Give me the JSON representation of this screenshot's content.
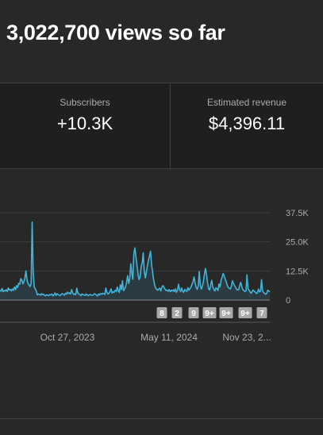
{
  "headline": "3,022,700 views so far",
  "metrics": [
    {
      "label": "Subscribers",
      "value": "+10.3K"
    },
    {
      "label": "Estimated revenue",
      "value": "$4,396.11"
    }
  ],
  "chart_data": {
    "type": "area",
    "series": [
      {
        "color": "#41b4d9",
        "values": [
          4200,
          3800,
          5000,
          3600,
          4100,
          3900,
          4400,
          3700,
          5200,
          4300,
          4600,
          3900,
          4800,
          4200,
          5600,
          4500,
          6200,
          5400,
          7200,
          6800,
          9200,
          8600,
          7000,
          7800,
          9500,
          12500,
          8900,
          7100,
          6500,
          5800,
          7300,
          33500,
          12000,
          5600,
          4800,
          3900,
          2200,
          2600,
          2400,
          2100,
          2800,
          2300,
          2500,
          2000,
          1800,
          2300,
          2100,
          1900,
          2400,
          2200,
          2600,
          1800,
          2200,
          3100,
          2000,
          2700,
          2400,
          2100,
          1900,
          2500,
          2800,
          2400,
          2100,
          2900,
          2500,
          3400,
          2800,
          3100,
          2600,
          4500,
          3100,
          2400,
          2700,
          2300,
          5100,
          3000,
          2600,
          2300,
          1900,
          2600,
          2400,
          2200,
          2000,
          2600,
          2200,
          1900,
          2200,
          2400,
          2100,
          2000,
          2300,
          2700,
          2500,
          2100,
          1800,
          2600,
          2200,
          2800,
          2500,
          2900,
          2700,
          2400,
          5200,
          3300,
          2600,
          2900,
          3700,
          4800,
          3000,
          3600,
          3300,
          4200,
          3800,
          5600,
          3800,
          3300,
          6600,
          4500,
          8300,
          4000,
          4800,
          5700,
          7700,
          10500,
          7100,
          9000,
          15600,
          11800,
          8900,
          20100,
          22400,
          18500,
          14800,
          11200,
          8800,
          9900,
          14400,
          16000,
          20300,
          12800,
          9500,
          11700,
          14600,
          17000,
          18900,
          21000,
          15700,
          12100,
          8800,
          6500,
          5200,
          4600,
          4200,
          4800,
          5100,
          3900,
          5600,
          6200,
          5400,
          4700,
          4100,
          4300,
          3800,
          4500,
          3600,
          4200,
          3900,
          4400,
          3700,
          4800,
          3300,
          4200,
          6800,
          4500,
          3600,
          5200,
          3800,
          3300,
          4600,
          4000,
          3700,
          5300,
          4200,
          4900,
          5600,
          6700,
          7900,
          9900,
          7400,
          5400,
          4600,
          6000,
          12300,
          6500,
          4700,
          5800,
          8000,
          11200,
          13600,
          10900,
          7400,
          4800,
          4300,
          6400,
          8500,
          5700,
          4600,
          3900,
          5300,
          4800,
          4100,
          6900,
          5600,
          8400,
          9800,
          11400,
          10400,
          9000,
          7900,
          6300,
          5400,
          5100,
          4700,
          6000,
          8300,
          7100,
          6200,
          5400,
          4600,
          4300,
          4500,
          6400,
          7600,
          5700,
          4500,
          4100,
          3700,
          3900,
          10800,
          4800,
          4200,
          3500,
          2900,
          3700,
          4300,
          3800,
          3400,
          2800,
          3100,
          4700,
          3500,
          3800,
          8700,
          3900,
          3300,
          2800,
          2500,
          2900,
          4200,
          3900,
          3500
        ]
      }
    ],
    "x_tick_labels": [
      "Oct 27, 2023",
      "May 11, 2024",
      "Nov 23, 2..."
    ],
    "y_tick_labels": [
      "37.5K",
      "25.0K",
      "12.5K",
      "0"
    ],
    "ylim": [
      0,
      37500
    ],
    "grid": true,
    "markers": [
      "8",
      "2",
      "9",
      "9+",
      "9+",
      "9+",
      "7"
    ]
  }
}
